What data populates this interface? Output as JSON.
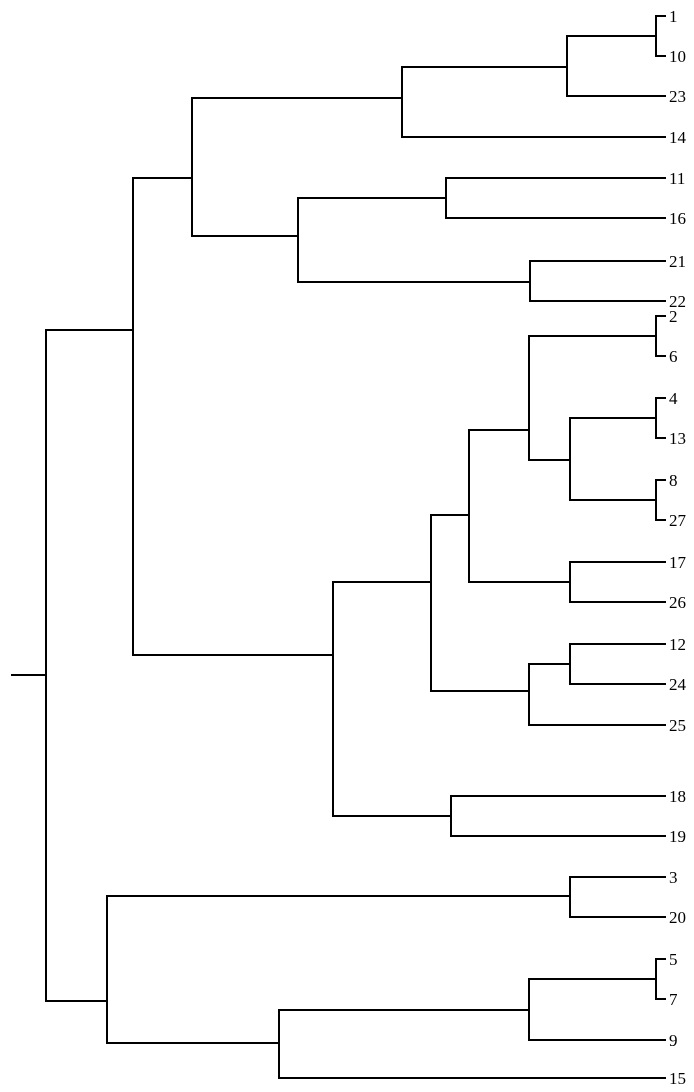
{
  "diagram": {
    "type": "dendrogram",
    "orientation": "left-to-right",
    "line_color": "#000000",
    "background": "#ffffff",
    "leaves": [
      "1",
      "10",
      "23",
      "14",
      "11",
      "16",
      "21",
      "22",
      "2",
      "6",
      "4",
      "13",
      "8",
      "27",
      "17",
      "26",
      "12",
      "24",
      "25",
      "18",
      "19",
      "3",
      "20",
      "5",
      "7",
      "9",
      "15"
    ]
  }
}
